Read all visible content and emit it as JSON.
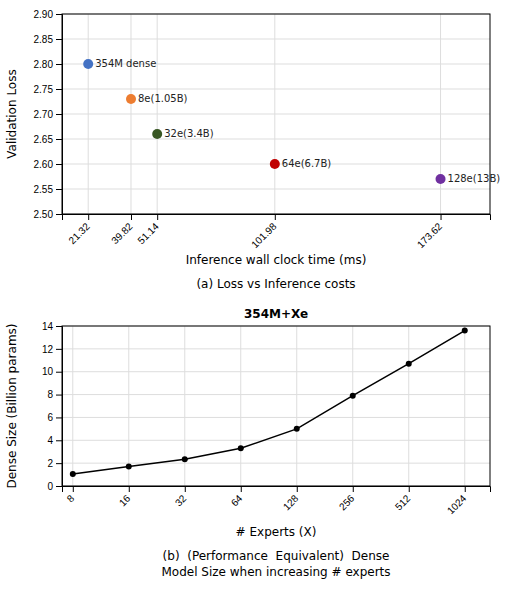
{
  "chart_data": [
    {
      "type": "scatter",
      "x": [
        21.32,
        39.82,
        51.14,
        101.98,
        173.62
      ],
      "values": [
        2.8,
        2.73,
        2.66,
        2.6,
        2.57
      ],
      "colors": [
        "#4472c4",
        "#ed7d31",
        "#375623",
        "#c00000",
        "#7030a0"
      ],
      "annotations": [
        "354M dense",
        "8e(1.05B)",
        "32e(3.4B)",
        "64e(6.7B)",
        "128e(13B)"
      ],
      "xlabel": "Inference wall clock time (ms)",
      "ylabel": "Validation Loss",
      "xlim": [
        10,
        195
      ],
      "xticks": [
        21.32,
        39.82,
        51.14,
        101.98,
        173.62
      ],
      "ylim": [
        2.5,
        2.9
      ],
      "yticks": [
        {
          "value": 2.5,
          "label": "2.50"
        },
        2.55,
        {
          "value": 2.6,
          "label": "2.60"
        },
        2.65,
        {
          "value": 2.7,
          "label": "2.70"
        },
        2.75,
        {
          "value": 2.8,
          "label": "2.80"
        },
        2.85,
        {
          "value": 2.9,
          "label": "2.90"
        }
      ],
      "caption": "(a) Loss vs Inference costs",
      "grid": true
    },
    {
      "type": "line",
      "title": "354M+Xe",
      "x": [
        8,
        16,
        32,
        64,
        128,
        256,
        512,
        1024
      ],
      "values": [
        1.05,
        1.7,
        2.35,
        3.3,
        5.0,
        7.9,
        10.7,
        13.6
      ],
      "color": "black",
      "marker": "circle",
      "xlabel": "# Experts (X)",
      "ylabel": "Dense Size (Billion params)",
      "log": "x",
      "xlim": [
        7,
        1400
      ],
      "xticks": [
        8,
        16,
        32,
        64,
        128,
        256,
        512,
        1024
      ],
      "ylim": [
        0,
        14
      ],
      "yticks": [
        0,
        2,
        4,
        6,
        8,
        10,
        12,
        14
      ],
      "caption": "(b)  (Performance  Equivalent)  Dense\nModel Size when increasing # experts",
      "grid": true
    }
  ]
}
